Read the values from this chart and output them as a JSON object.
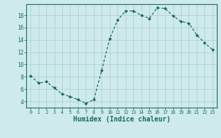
{
  "x": [
    0,
    1,
    2,
    3,
    4,
    5,
    6,
    7,
    8,
    9,
    10,
    11,
    12,
    13,
    14,
    15,
    16,
    17,
    18,
    19,
    20,
    21,
    22,
    23
  ],
  "y": [
    8.2,
    7.0,
    7.2,
    6.2,
    5.2,
    4.8,
    4.3,
    3.7,
    4.3,
    9.1,
    14.2,
    17.2,
    18.7,
    18.7,
    18.0,
    17.5,
    19.2,
    19.1,
    17.9,
    17.0,
    16.7,
    14.8,
    13.5,
    12.4
  ],
  "line_color": "#1a6b5a",
  "marker": "D",
  "marker_size": 2.0,
  "bg_color": "#ceeaea",
  "grid_color": "#b0d0d0",
  "axis_color": "#1a6b5a",
  "xlabel": "Humidex (Indice chaleur)",
  "xlabel_fontsize": 7,
  "xlim": [
    -0.5,
    23.5
  ],
  "ylim": [
    3.0,
    19.8
  ],
  "yticks": [
    4,
    6,
    8,
    10,
    12,
    14,
    16,
    18
  ],
  "xtick_labels": [
    "0",
    "1",
    "2",
    "3",
    "4",
    "5",
    "6",
    "7",
    "8",
    "9",
    "10",
    "11",
    "12",
    "13",
    "14",
    "15",
    "16",
    "17",
    "18",
    "19",
    "20",
    "21",
    "22",
    "23"
  ]
}
